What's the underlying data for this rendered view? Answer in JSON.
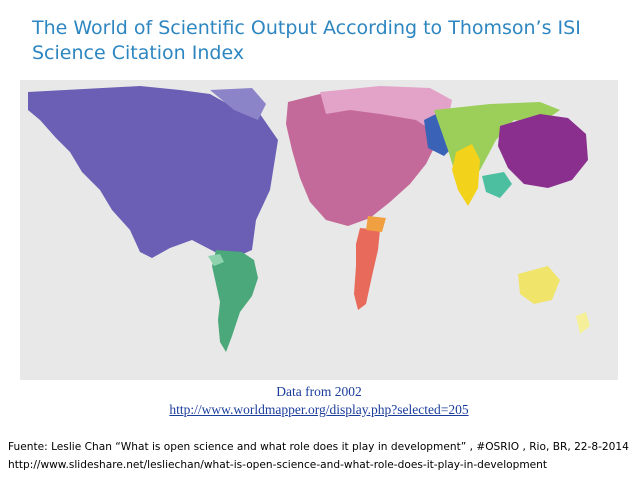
{
  "slide": {
    "title": "The World of Scientific Output According to Thomson’s ISI Science Citation Index",
    "data_year": "Data from 2002",
    "data_url": "http://www.worldmapper.org/display.php?selected=205",
    "source_line1": "Fuente:  Leslie Chan “What is open science and what role does it play in development” , #OSRIO , Rio, BR,  22-8-2014",
    "source_line2": "http://www.slideshare.net/lesliechan/what-is-open-science-and-what-role-does-it-play-in-development"
  },
  "map": {
    "ocean_color": "#e8e8e8",
    "regions": [
      {
        "name": "north-america",
        "color": "#6a5fb5"
      },
      {
        "name": "latin-america",
        "color": "#4aa87a"
      },
      {
        "name": "western-europe",
        "color": "#c46a9a"
      },
      {
        "name": "eastern-europe",
        "color": "#e3a2c8"
      },
      {
        "name": "northern-europe",
        "color": "#3a63b8"
      },
      {
        "name": "middle-east",
        "color": "#9bcf5a"
      },
      {
        "name": "south-asia",
        "color": "#f2d21a"
      },
      {
        "name": "east-asia",
        "color": "#8a2f8e"
      },
      {
        "name": "africa",
        "color": "#e86a5a"
      },
      {
        "name": "oceania",
        "color": "#f0e56a"
      }
    ]
  }
}
